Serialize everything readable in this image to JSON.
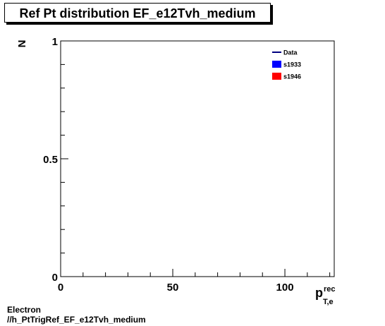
{
  "chart_data": {
    "type": "line",
    "title": "Ref Pt distribution EF_e12Tvh_medium",
    "ylabel": "N",
    "xlabel_main": "p",
    "xlabel_sup": "rec",
    "xlabel_sub": "T,e",
    "xlim": [
      0,
      122
    ],
    "ylim": [
      0,
      1
    ],
    "x_ticks": [
      {
        "value": 0,
        "label": "0"
      },
      {
        "value": 50,
        "label": "50"
      },
      {
        "value": 100,
        "label": "100"
      }
    ],
    "y_ticks": [
      {
        "value": 0,
        "label": "0"
      },
      {
        "value": 0.5,
        "label": "0.5"
      },
      {
        "value": 1,
        "label": "1"
      }
    ],
    "series": [
      {
        "name": "Data",
        "style": "line",
        "color": "#000080",
        "values": []
      },
      {
        "name": "s1933",
        "style": "fill",
        "color": "#0000ff",
        "values": []
      },
      {
        "name": "s1946",
        "style": "fill",
        "color": "#ff0000",
        "values": []
      }
    ],
    "legend_position": "top-right",
    "grid": false
  },
  "footer": {
    "line1": "Electron",
    "line2": "//h_PtTrigRef_EF_e12Tvh_medium"
  }
}
